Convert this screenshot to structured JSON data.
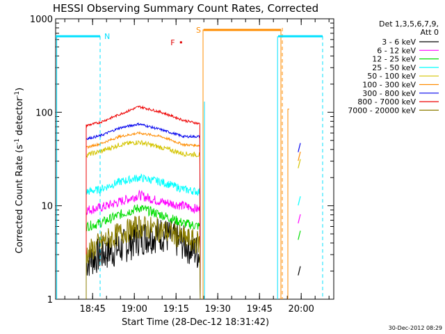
{
  "chart_data": {
    "type": "line",
    "title": "HESSI Observing Summary Count Rates, Corrected",
    "xlabel": "Start Time (28-Dec-12 18:31:42)",
    "ylabel": "Corrected Count Rate (s⁻¹ detector⁻¹)",
    "ylabel_main": "Corrected Count Rate (s",
    "ylabel_sup1": "-1",
    "ylabel_mid": " detector",
    "ylabel_sup2": "-1",
    "ylabel_end": ")",
    "y_scale": "log",
    "ylim": [
      1,
      1000
    ],
    "xlim": [
      "18:31:42",
      "20:11:42"
    ],
    "x_tick_labels": [
      "18:45",
      "19:00",
      "19:15",
      "19:30",
      "19:45",
      "20:00"
    ],
    "x_tick_minutes": [
      13.3,
      28.3,
      43.3,
      58.3,
      73.3,
      88.3
    ],
    "y_tick_labels": [
      "1",
      "10",
      "100",
      "1000"
    ],
    "y_tick_values": [
      1,
      10,
      100,
      1000
    ],
    "legend_header": [
      "Det 1,3,5,6,7,9,",
      "Att 0"
    ],
    "legend_position": "right",
    "timestamp": "30-Dec-2012 08:29",
    "flags": [
      {
        "label": "N",
        "color": "#00e0ff",
        "min": 16.0,
        "value": 650
      },
      {
        "label": "S",
        "color": "#ff8c00",
        "min": 52.5,
        "value": 760
      },
      {
        "label": "F",
        "color": "#e00000",
        "min": 42.8,
        "value": 560
      }
    ],
    "series": [
      {
        "name": "3 - 6 keV",
        "color": "#000000",
        "values": [
          2.5,
          3.0,
          3.5,
          4.5,
          5.0,
          4.0,
          3.0
        ]
      },
      {
        "name": "6 - 12 keV",
        "color": "#ff00ff",
        "values": [
          9,
          9.5,
          11,
          13,
          11,
          10,
          9
        ]
      },
      {
        "name": "12 - 25 keV",
        "color": "#00dd00",
        "values": [
          6,
          6.5,
          8,
          9.5,
          8,
          6.5,
          6
        ]
      },
      {
        "name": "25 - 50 keV",
        "color": "#00ffff",
        "values": [
          14,
          15,
          18,
          20,
          18,
          15,
          14
        ]
      },
      {
        "name": "50 - 100 keV",
        "color": "#d4c400",
        "values": [
          35,
          38,
          45,
          48,
          42,
          36,
          35
        ]
      },
      {
        "name": "100 - 300 keV",
        "color": "#ff8c00",
        "values": [
          42,
          46,
          55,
          60,
          55,
          45,
          44
        ]
      },
      {
        "name": "300 - 800 keV",
        "color": "#0000ee",
        "values": [
          52,
          56,
          68,
          75,
          65,
          55,
          55
        ]
      },
      {
        "name": "800 - 7000 keV",
        "color": "#ee0000",
        "values": [
          72,
          78,
          95,
          115,
          100,
          82,
          75
        ]
      },
      {
        "name": "7000 - 20000 keV",
        "color": "#8b7d00",
        "values": [
          3.0,
          4.0,
          5.0,
          6.0,
          5.5,
          4.5,
          4.0
        ]
      }
    ],
    "series_x_minutes": [
      11.0,
      16.0,
      23.0,
      30.0,
      38.0,
      46.0,
      52.0
    ]
  }
}
